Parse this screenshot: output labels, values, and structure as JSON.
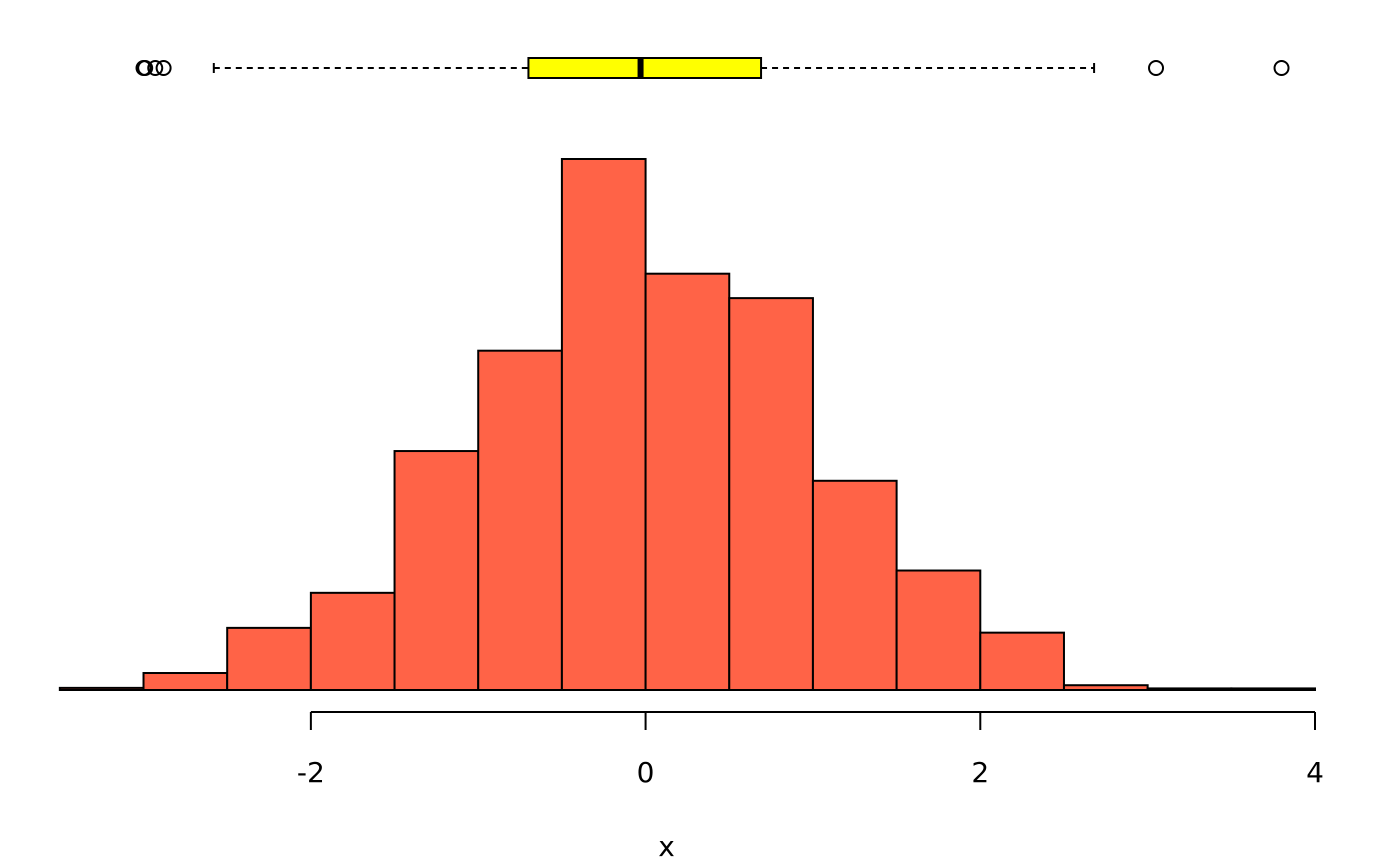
{
  "chart_data": {
    "type": "histogram",
    "xlabel": "x",
    "xlim": [
      -3.75,
      4.0
    ],
    "ylim": [
      0,
      1
    ],
    "grid": false,
    "legend": "none",
    "bins": [
      {
        "start": -3.5,
        "end": -3.0,
        "value": 0.004
      },
      {
        "start": -3.0,
        "end": -2.5,
        "value": 0.032
      },
      {
        "start": -2.5,
        "end": -2.0,
        "value": 0.117
      },
      {
        "start": -2.0,
        "end": -1.5,
        "value": 0.183
      },
      {
        "start": -1.5,
        "end": -1.0,
        "value": 0.45
      },
      {
        "start": -1.0,
        "end": -0.5,
        "value": 0.639
      },
      {
        "start": -0.5,
        "end": 0.0,
        "value": 1.0
      },
      {
        "start": 0.0,
        "end": 0.5,
        "value": 0.784
      },
      {
        "start": 0.5,
        "end": 1.0,
        "value": 0.738
      },
      {
        "start": 1.0,
        "end": 1.5,
        "value": 0.394
      },
      {
        "start": 1.5,
        "end": 2.0,
        "value": 0.225
      },
      {
        "start": 2.0,
        "end": 2.5,
        "value": 0.108
      },
      {
        "start": 2.5,
        "end": 3.0,
        "value": 0.009
      },
      {
        "start": 3.0,
        "end": 3.5,
        "value": 0.003
      },
      {
        "start": 3.5,
        "end": 4.0,
        "value": 0.003
      }
    ],
    "x_ticks": [
      {
        "value": -2,
        "label": "-2"
      },
      {
        "value": 0,
        "label": "0"
      },
      {
        "value": 2,
        "label": "2"
      },
      {
        "value": 4,
        "label": "4"
      }
    ],
    "boxplot": {
      "whisker_low": -2.58,
      "q1": -0.7,
      "median": -0.03,
      "q3": 0.69,
      "whisker_high": 2.68,
      "outliers": [
        -3.0,
        -2.99,
        -2.93,
        -2.88,
        3.05,
        3.8
      ]
    },
    "colors": {
      "bars": "#FF6347",
      "box": "#FFFF00",
      "stroke": "#000000"
    }
  }
}
